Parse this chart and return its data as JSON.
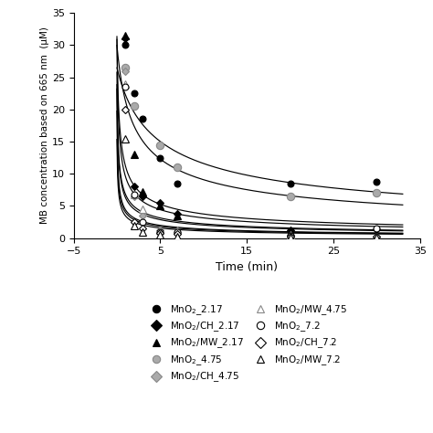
{
  "xlabel": "Time (min)",
  "ylabel": "MB concentration based on 665 nm  (μM)",
  "xlim": [
    -5,
    35
  ],
  "ylim": [
    0,
    35
  ],
  "xticks": [
    -5,
    5,
    15,
    25,
    35
  ],
  "yticks": [
    0,
    5,
    10,
    15,
    20,
    25,
    30,
    35
  ],
  "raw_data": {
    "MnO2_2.17": {
      "x": [
        1,
        2,
        3,
        5,
        7,
        20,
        30
      ],
      "y": [
        30.0,
        22.5,
        18.5,
        12.5,
        8.5,
        8.5,
        8.7
      ],
      "marker": "o",
      "ec": "#000000",
      "fc": "#000000",
      "ms": 5
    },
    "MnO2/CH_2.17": {
      "x": [
        1,
        2,
        3,
        5,
        7,
        20,
        30
      ],
      "y": [
        31.0,
        8.0,
        6.5,
        5.5,
        3.8,
        1.2,
        1.4
      ],
      "marker": "D",
      "ec": "#000000",
      "fc": "#000000",
      "ms": 4
    },
    "MnO2/MW_2.17": {
      "x": [
        1,
        2,
        3,
        5,
        7,
        20,
        30
      ],
      "y": [
        31.5,
        13.0,
        7.2,
        5.0,
        3.5,
        1.0,
        0.2
      ],
      "marker": "^",
      "ec": "#000000",
      "fc": "#000000",
      "ms": 6
    },
    "MnO2_4.75": {
      "x": [
        1,
        2,
        5,
        7,
        20,
        30
      ],
      "y": [
        26.5,
        20.5,
        14.5,
        11.0,
        6.5,
        7.0
      ],
      "marker": "o",
      "ec": "#888888",
      "fc": "#aaaaaa",
      "ms": 6
    },
    "MnO2/CH_4.75": {
      "x": [
        1,
        2,
        3,
        5,
        7,
        20,
        30
      ],
      "y": [
        26.0,
        6.5,
        3.5,
        1.2,
        1.0,
        0.4,
        0.3
      ],
      "marker": "D",
      "ec": "#888888",
      "fc": "#aaaaaa",
      "ms": 4
    },
    "MnO2/MW_4.75": {
      "x": [
        1,
        2,
        3,
        5,
        7,
        20,
        30
      ],
      "y": [
        24.0,
        6.8,
        4.5,
        1.3,
        1.2,
        0.5,
        0.3
      ],
      "marker": "^",
      "ec": "#888888",
      "fc": "#ffffff",
      "ms": 6
    },
    "MnO2_7.2": {
      "x": [
        1,
        2,
        3,
        5,
        7,
        20,
        30
      ],
      "y": [
        23.5,
        6.8,
        2.5,
        1.0,
        1.0,
        0.4,
        1.5
      ],
      "marker": "o",
      "ec": "#000000",
      "fc": "#ffffff",
      "ms": 5
    },
    "MnO2/CH_7.2": {
      "x": [
        1,
        2,
        3,
        5,
        7,
        20,
        30
      ],
      "y": [
        20.0,
        2.5,
        1.5,
        0.8,
        0.7,
        0.2,
        0.2
      ],
      "marker": "D",
      "ec": "#000000",
      "fc": "#ffffff",
      "ms": 4
    },
    "MnO2/MW_7.2": {
      "x": [
        1,
        2,
        3,
        5,
        7,
        20,
        30
      ],
      "y": [
        15.5,
        2.0,
        1.0,
        0.5,
        0.3,
        0.1,
        0.1
      ],
      "marker": "^",
      "ec": "#000000",
      "fc": "#ffffff",
      "ms": 6
    }
  },
  "fit_curves": [
    {
      "C0": 30.0,
      "k": 0.00055
    },
    {
      "C0": 26.5,
      "k": 0.0003
    },
    {
      "C0": 31.0,
      "k": 0.0035
    },
    {
      "C0": 31.5,
      "k": 0.005
    },
    {
      "C0": 26.0,
      "k": 0.012
    },
    {
      "C0": 24.0,
      "k": 0.01
    },
    {
      "C0": 23.5,
      "k": 0.025
    },
    {
      "C0": 20.0,
      "k": 0.03
    },
    {
      "C0": 15.5,
      "k": 0.04
    }
  ],
  "legend_items": [
    {
      "label": "MnO$_2$_2.17",
      "marker": "o",
      "ec": "#000000",
      "fc": "#000000"
    },
    {
      "label": "MnO$_2$/CH_2.17",
      "marker": "D",
      "ec": "#000000",
      "fc": "#000000"
    },
    {
      "label": "MnO$_2$/MW_2.17",
      "marker": "^",
      "ec": "#000000",
      "fc": "#000000"
    },
    {
      "label": "MnO$_2$_4.75",
      "marker": "o",
      "ec": "#888888",
      "fc": "#aaaaaa"
    },
    {
      "label": "MnO$_2$/CH_4.75",
      "marker": "D",
      "ec": "#888888",
      "fc": "#aaaaaa"
    },
    {
      "label": "MnO$_2$/MW_4.75",
      "marker": "^",
      "ec": "#888888",
      "fc": "#ffffff"
    },
    {
      "label": "MnO$_2$_7.2",
      "marker": "o",
      "ec": "#000000",
      "fc": "#ffffff"
    },
    {
      "label": "MnO$_2$/CH_7.2",
      "marker": "D",
      "ec": "#000000",
      "fc": "#ffffff"
    },
    {
      "label": "MnO$_2$/MW_7.2",
      "marker": "^",
      "ec": "#000000",
      "fc": "#ffffff"
    }
  ]
}
